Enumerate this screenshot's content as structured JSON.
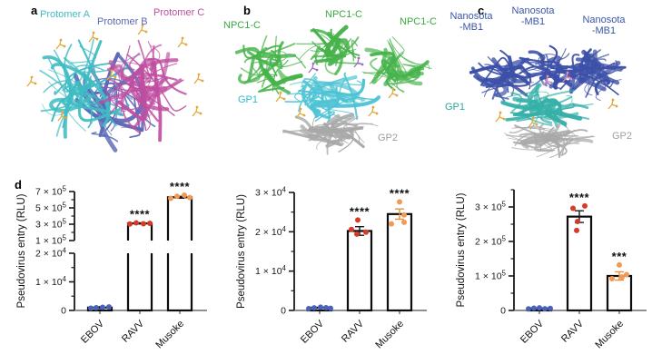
{
  "colors": {
    "protomer_a": "#3fbcc4",
    "protomer_b": "#5a6ab8",
    "protomer_c": "#bf4da0",
    "npc1": "#3caa40",
    "npc1_ribbon": "#46b34a",
    "gp1_b": "#2fb9cf",
    "gp1_b_ribbon": "#4cc3d4",
    "gp1_c": "#2aa89f",
    "gp1_c_ribbon": "#35b0a8",
    "gp2": "#9e9e9e",
    "gp2_ribbon": "#a8a8a8",
    "nanosota": "#3a55a8",
    "nanosota_ribbon": "#3c50a8",
    "glycan": "#e2a93e",
    "ligand_purple": "#a06cc0",
    "ligand_pink": "#e08cb8",
    "ebov_dots": "#4a63b8",
    "ravv_dots": "#d63b2a",
    "musoke_dots": "#f09a55",
    "axis": "#1a1a1a",
    "baseline": "#6b6b6b"
  },
  "panels": {
    "a": {
      "letter": "a",
      "labels": [
        {
          "text": "Protomer A",
          "color": "#3fbcc4"
        },
        {
          "text": "Protomer B",
          "color": "#5a6ab8"
        },
        {
          "text": "Protomer C",
          "color": "#bf4da0"
        }
      ]
    },
    "b": {
      "letter": "b",
      "labels": [
        {
          "text": "NPC1-C",
          "color": "#3caa40"
        },
        {
          "text": "NPC1-C",
          "color": "#3caa40"
        },
        {
          "text": "NPC1-C",
          "color": "#3caa40"
        },
        {
          "text": "GP1",
          "color": "#2fb9cf"
        },
        {
          "text": "GP2",
          "color": "#9e9e9e"
        }
      ]
    },
    "c": {
      "letter": "c",
      "labels": [
        {
          "line1": "Nanosota",
          "line2": "-MB1",
          "color": "#3a55a8"
        },
        {
          "line1": "Nanosota",
          "line2": "-MB1",
          "color": "#3a55a8"
        },
        {
          "line1": "Nanosota",
          "line2": "-MB1",
          "color": "#3a55a8"
        },
        {
          "text": "GP1",
          "color": "#2aa89f"
        },
        {
          "text": "GP2",
          "color": "#9e9e9e"
        }
      ]
    },
    "d": {
      "letter": "d"
    }
  },
  "chart_data": [
    {
      "type": "bar",
      "ylabel": "Pseudovirus entry (RLU)",
      "categories": [
        "EBOV",
        "RAVV",
        "Musoke"
      ],
      "broken_axis": true,
      "axis_segments": [
        {
          "range": [
            0,
            20000
          ],
          "major_ticks": [
            {
              "value": 0,
              "label": "0"
            },
            {
              "value": 10000,
              "label": "1 × 10^4"
            },
            {
              "value": 20000,
              "label": "2 × 10^4"
            }
          ],
          "minor_ticks": [
            5000,
            15000
          ]
        },
        {
          "range": [
            100000,
            700000
          ],
          "major_ticks": [
            {
              "value": 100000,
              "label": "1 × 10^5"
            },
            {
              "value": 300000,
              "label": "3 × 10^5"
            },
            {
              "value": 500000,
              "label": "5 × 10^5"
            },
            {
              "value": 700000,
              "label": "7 × 10^5"
            }
          ],
          "minor_ticks": [
            200000,
            400000,
            600000
          ]
        }
      ],
      "bars": [
        {
          "category": "EBOV",
          "value": 1000,
          "error": 300,
          "error_color": "#1a1a1a",
          "significance": "",
          "dot_color": "#4a63b8",
          "dots": [
            800,
            950,
            1100,
            1250
          ],
          "dot_offsets": [
            -10,
            -4,
            3,
            10
          ]
        },
        {
          "category": "RAVV",
          "value": 310000,
          "error": 7000,
          "error_color": "#1a1a1a",
          "significance": "****",
          "dot_color": "#d63b2a",
          "dots": [
            303000,
            316000,
            306000,
            311000
          ],
          "dot_offsets": [
            -11,
            -4,
            4,
            11
          ]
        },
        {
          "category": "Musoke",
          "value": 630000,
          "error": 11000,
          "error_color": "#1a1a1a",
          "significance": "****",
          "dot_color": "#f09a55",
          "dots": [
            616000,
            641000,
            656000,
            627000
          ],
          "dot_offsets": [
            -10,
            -3,
            5,
            11
          ]
        }
      ]
    },
    {
      "type": "bar",
      "ylabel": "Pseudovirus entry (RLU)",
      "categories": [
        "EBOV",
        "RAVV",
        "Musoke"
      ],
      "broken_axis": false,
      "axis_segments": [
        {
          "range": [
            0,
            30000
          ],
          "major_ticks": [
            {
              "value": 0,
              "label": "0"
            },
            {
              "value": 10000,
              "label": "1 × 10^4"
            },
            {
              "value": 20000,
              "label": "2 × 10^4"
            },
            {
              "value": 30000,
              "label": "3 × 10^4"
            }
          ],
          "minor_ticks": [
            5000,
            15000,
            25000
          ]
        }
      ],
      "bars": [
        {
          "category": "EBOV",
          "value": 700,
          "error": 0,
          "error_color": "#1a1a1a",
          "significance": "",
          "dot_color": "#4a63b8",
          "dots": [
            450,
            650,
            850,
            700,
            550
          ],
          "dot_offsets": [
            -12,
            -6,
            1,
            7,
            12
          ]
        },
        {
          "category": "RAVV",
          "value": 20200,
          "error": 1100,
          "error_color": "#1a1a1a",
          "significance": "****",
          "dot_color": "#d63b2a",
          "dots": [
            23000,
            20600,
            19400,
            19900
          ],
          "dot_offsets": [
            -2,
            -9,
            -3,
            7
          ]
        },
        {
          "category": "Musoke",
          "value": 24500,
          "error": 1300,
          "error_color": "#e8913f",
          "significance": "****",
          "dot_color": "#f09a55",
          "dots": [
            27600,
            24300,
            22000,
            22400
          ],
          "dot_offsets": [
            0,
            5,
            -9,
            5
          ]
        }
      ]
    },
    {
      "type": "bar",
      "ylabel": "Pseudovirus entry (RLU)",
      "categories": [
        "EBOV",
        "RAVV",
        "Musoke"
      ],
      "broken_axis": false,
      "axis_segments": [
        {
          "range": [
            0,
            350000
          ],
          "major_ticks": [
            {
              "value": 0,
              "label": "0"
            },
            {
              "value": 100000,
              "label": "1 × 10^5"
            },
            {
              "value": 200000,
              "label": "2 × 10^5"
            },
            {
              "value": 300000,
              "label": "3 × 10^5"
            }
          ],
          "minor_ticks": [
            50000,
            150000,
            250000,
            350000
          ]
        }
      ],
      "bars": [
        {
          "category": "EBOV",
          "value": 6000,
          "error": 0,
          "error_color": "#1a1a1a",
          "significance": "",
          "dot_color": "#4a63b8",
          "dots": [
            4500,
            6500,
            7500,
            5000,
            6000
          ],
          "dot_offsets": [
            -12,
            -6,
            0,
            6,
            12
          ]
        },
        {
          "category": "RAVV",
          "value": 272000,
          "error": 17000,
          "error_color": "#1a1a1a",
          "significance": "****",
          "dot_color": "#d63b2a",
          "dots": [
            296000,
            303000,
            258000,
            232000
          ],
          "dot_offsets": [
            -7,
            6,
            -2,
            -3
          ]
        },
        {
          "category": "Musoke",
          "value": 100000,
          "error": 12000,
          "error_color": "#e8913f",
          "significance": "***",
          "dot_color": "#f09a55",
          "dots": [
            132000,
            104000,
            92000,
            97000
          ],
          "dot_offsets": [
            0,
            8,
            -8,
            3
          ]
        }
      ]
    }
  ]
}
